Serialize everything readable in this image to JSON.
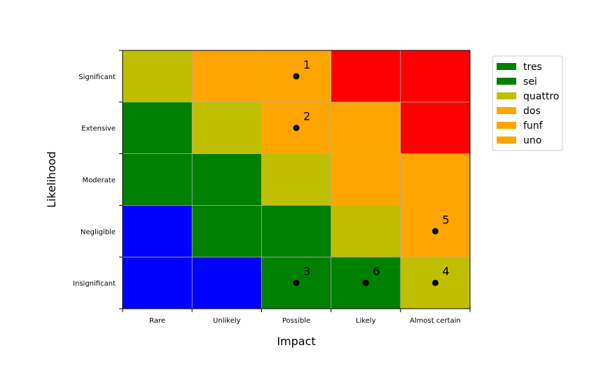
{
  "chart_data": {
    "type": "heatmap",
    "title": "",
    "xlabel": "Impact",
    "ylabel": "Likelihood",
    "x_categories": [
      "Rare",
      "Unlikely",
      "Possible",
      "Likely",
      "Almost certain"
    ],
    "y_categories": [
      "Insignificant",
      "Negligible",
      "Moderate",
      "Extensive",
      "Significant"
    ],
    "grid": true,
    "cells": [
      [
        "quattro",
        "dos",
        "dos",
        "red",
        "red"
      ],
      [
        "sei",
        "quattro",
        "dos",
        "dos",
        "red"
      ],
      [
        "sei",
        "sei",
        "quattro",
        "dos",
        "dos"
      ],
      [
        "blue",
        "sei",
        "sei",
        "quattro",
        "dos"
      ],
      [
        "blue",
        "blue",
        "sei",
        "sei",
        "quattro"
      ]
    ],
    "cell_colors": {
      "blue": "#0000ff",
      "tres": "#008000",
      "sei": "#008000",
      "quattro": "#bfbf00",
      "dos": "#ffa500",
      "funf": "#ffa500",
      "uno": "#ffa500",
      "red": "#ff0000"
    },
    "points": [
      {
        "label": "1",
        "x": "Possible",
        "y": "Significant"
      },
      {
        "label": "2",
        "x": "Possible",
        "y": "Extensive"
      },
      {
        "label": "5",
        "x": "Almost certain",
        "y": "Negligible"
      },
      {
        "label": "3",
        "x": "Possible",
        "y": "Insignificant"
      },
      {
        "label": "6",
        "x": "Likely",
        "y": "Insignificant"
      },
      {
        "label": "4",
        "x": "Almost certain",
        "y": "Insignificant"
      }
    ],
    "legend": {
      "placement": "outside-top-right",
      "entries": [
        {
          "name": "tres",
          "color": "#008000"
        },
        {
          "name": "sei",
          "color": "#008000"
        },
        {
          "name": "quattro",
          "color": "#bfbf00"
        },
        {
          "name": "dos",
          "color": "#ffa500"
        },
        {
          "name": "funf",
          "color": "#ffa500"
        },
        {
          "name": "uno",
          "color": "#ffa500"
        }
      ]
    }
  }
}
